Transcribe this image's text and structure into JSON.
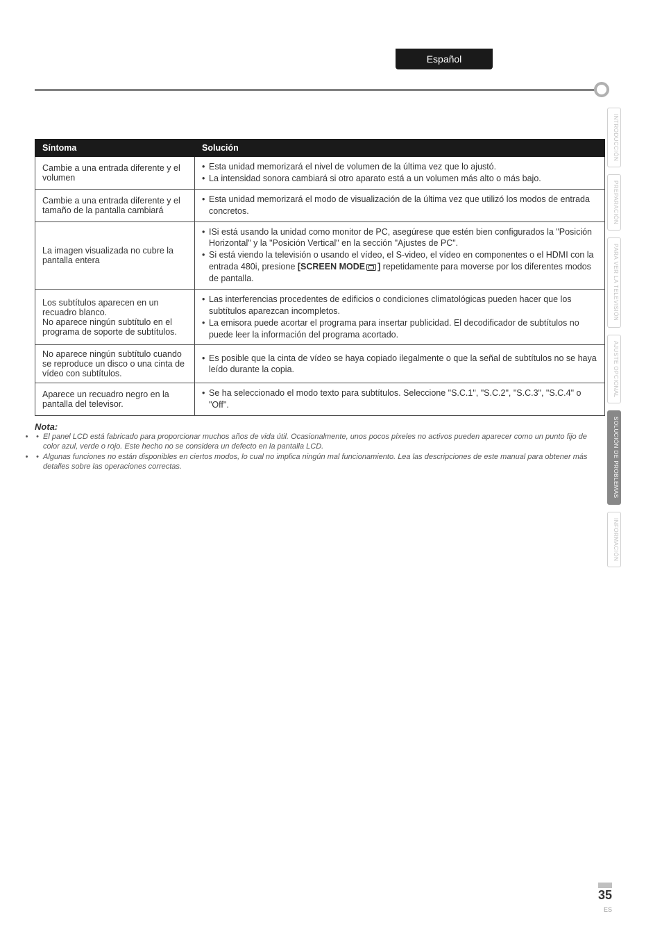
{
  "langTab": "Español",
  "sidebar": [
    {
      "label": "INTRODUCCIÓN",
      "active": false
    },
    {
      "label": "PREPARACIÓN",
      "active": false
    },
    {
      "label": "PARA VER LA TELEVISIÓN",
      "active": false
    },
    {
      "label": "AJUSTE OPCIONAL",
      "active": false
    },
    {
      "label": "SOLUCIÓN DE PROBLEMAS",
      "active": true
    },
    {
      "label": "INFORMACIÓN",
      "active": false
    }
  ],
  "tableHeaders": {
    "symptom": "Síntoma",
    "solution": "Solución"
  },
  "rows": [
    {
      "symptom": "Cambie a una entrada diferente y el volumen",
      "solutions": [
        "Esta unidad memorizará el nivel de volumen de la última vez que lo ajustó.",
        "La intensidad sonora cambiará si otro aparato está a un volumen más alto o más bajo."
      ]
    },
    {
      "symptom": "Cambie a una entrada diferente y el tamaño de la pantalla cambiará",
      "solutions": [
        "Esta unidad memorizará el modo de visualización de la última vez que utilizó los modos de entrada concretos."
      ]
    },
    {
      "symptom": "La imagen visualizada no cubre la pantalla entera",
      "solutions": [
        "ISi está usando la unidad como monitor de PC, asegúrese que estén bien configurados la \"Posición Horizontal\" y la \"Posición Vertical\" en la sección \"Ajustes de PC\".",
        "Si está viendo la televisión o usando el vídeo, el S-video, el vídeo en componentes o el HDMI con la entrada 480i, presione [SCREEN MODE ⬚] repetidamente para moverse por los diferentes modos de pantalla."
      ],
      "hasBold": true
    },
    {
      "symptom": "Los subtítulos aparecen en un recuadro blanco.\nNo aparece ningún subtítulo en el programa de soporte de subtítulos.",
      "solutions": [
        "Las interferencias procedentes de edificios o condiciones climatológicas pueden hacer que los subtítulos aparezcan incompletos.",
        "La emisora puede acortar el programa para insertar publicidad. El decodificador de subtítulos no puede leer la información del programa acortado."
      ]
    },
    {
      "symptom": "No aparece ningún subtítulo cuando se reproduce un disco o una cinta de vídeo con subtítulos.",
      "solutions": [
        "Es posible que la cinta de vídeo se haya copiado ilegalmente o que la señal de subtítulos no se haya leído durante la copia."
      ]
    },
    {
      "symptom": "Aparece un recuadro negro en la pantalla del televisor.",
      "solutions": [
        "Se ha seleccionado el modo texto para subtítulos. Seleccione \"S.C.1\", \"S.C.2\", \"S.C.3\", \"S.C.4\" o \"Off\"."
      ]
    }
  ],
  "note": {
    "title": "Nota:",
    "items": [
      "El panel LCD está fabricado para proporcionar muchos años de vida útil. Ocasionalmente, unos pocos píxeles no activos pueden aparecer como un punto fijo de color azul, verde o rojo. Este hecho no se considera un defecto en la pantalla LCD.",
      "Algunas funciones no están disponibles en ciertos modos, lo cual no implica ningún mal funcionamiento. Lea las descripciones de este manual para obtener más detalles sobre las operaciones correctas."
    ]
  },
  "footer": {
    "pageNum": "35",
    "sub": "ES"
  }
}
